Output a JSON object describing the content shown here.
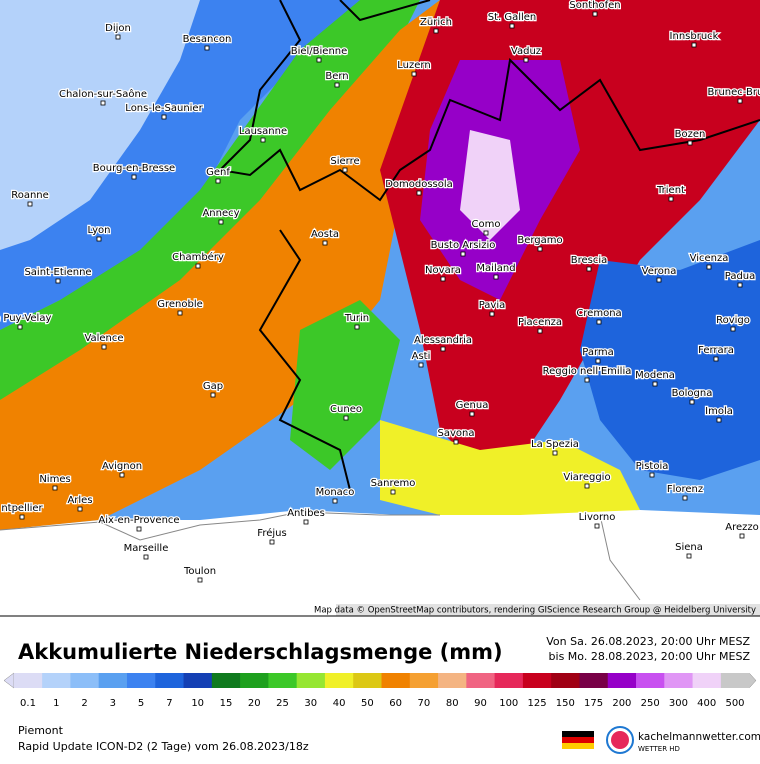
{
  "map": {
    "cities": [
      "Dijon",
      "Besancon",
      "Zürich",
      "St. Gallen",
      "Sonthofen",
      "Innsbruck",
      "Biel/Bienne",
      "Vaduz",
      "Luzern",
      "Bern",
      "Chalon-sur-Saône",
      "Lons-le-Saunier",
      "Brunec-Bruni",
      "Lausanne",
      "Bozen",
      "Bourg-en-Bresse",
      "Sierre",
      "Domodossola",
      "Genf",
      "Trient",
      "Roanne",
      "Annecy",
      "Como",
      "Lyon",
      "Aosta",
      "Busto Arsizio",
      "Bergamo",
      "Chambéry",
      "Vicenza",
      "Saint-Etienne",
      "Novara",
      "Mailand",
      "Brescia",
      "Verona",
      "Padua",
      "Grenoble",
      "Pavia",
      "Cremona",
      "Le Puy-Velay",
      "Turin",
      "Piacenza",
      "Rovigo",
      "Valence",
      "Alessandria",
      "Parma",
      "Asti",
      "Ferrara",
      "Reggio nell'Emilia",
      "Modena",
      "Gap",
      "Bologna",
      "Genua",
      "Cuneo",
      "Savona",
      "Imola",
      "La Spezia",
      "Avignon",
      "Pistoia",
      "Nimes",
      "Viareggio",
      "Sanremo",
      "Monaco",
      "Florenz",
      "Arles",
      "ntpellier",
      "Antibes",
      "Aix-en-Provence",
      "Livorno",
      "Arezzo",
      "Fréjus",
      "Marseille",
      "Siena",
      "Toulon"
    ],
    "attribution": "Map data © OpenStreetMap contributors, rendering GIScience Research Group @ Heidelberg University"
  },
  "footer": {
    "title": "Akkumulierte Niederschlagsmenge (mm)",
    "from": "Von Sa. 26.08.2023, 20:00 Uhr MESZ",
    "to": "bis Mo. 28.08.2023, 20:00 Uhr MESZ",
    "region": "Piemont",
    "model": "Rapid Update ICON-D2 (2 Tage) vom 26.08.2023/18z",
    "brand": "kachelmannwetter.com",
    "brand_sub": "WETTER HD",
    "scale": {
      "levels": [
        0.1,
        1,
        2,
        3,
        5,
        7,
        10,
        15,
        20,
        25,
        30,
        40,
        50,
        60,
        70,
        80,
        90,
        100,
        125,
        150,
        175,
        200,
        250,
        300,
        400,
        500
      ],
      "colors": [
        "#dcdcf5",
        "#b4d2fa",
        "#8cbef8",
        "#5aa0f0",
        "#3c82f0",
        "#1e64dc",
        "#1440b4",
        "#0f7a1e",
        "#1ea01e",
        "#3cc828",
        "#96e632",
        "#f0f028",
        "#dcc814",
        "#f08200",
        "#f5a032",
        "#f4b482",
        "#f06482",
        "#e6285a",
        "#c8001e",
        "#a00014",
        "#780046",
        "#9600c8",
        "#c850f0",
        "#e096f5",
        "#f0d2f8",
        "#c8c8c8"
      ]
    }
  }
}
